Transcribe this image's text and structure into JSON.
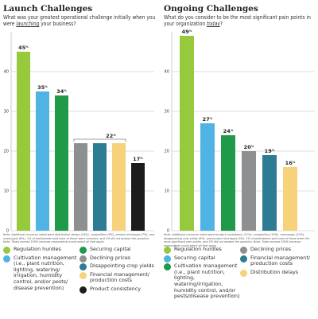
{
  "chart_data": [
    {
      "type": "bar",
      "title": "Launch Challenges",
      "question_html": "What was your greatest operational challenge initially when you were <em>launching</em> your business?",
      "ylim": [
        0,
        50
      ],
      "yticks": [
        0,
        10,
        20,
        30,
        40
      ],
      "grid": true,
      "categories": [
        "Regulation hurdles",
        "Cultivation management (i.e., plant nutrition, lighting, watering/ irrigation, humidity control, and/or pests/ disease prevention)",
        "Securing capital",
        "Declining prices",
        "Disappointing crop yields",
        "Financial management/ production costs",
        "Product consistency"
      ],
      "values": [
        45,
        35,
        34,
        22,
        22,
        22,
        17
      ],
      "value_labels": [
        "45%",
        "35%",
        "34%",
        "",
        "",
        "",
        "17%"
      ],
      "group_label": {
        "text": "22%",
        "from": 3,
        "to": 5,
        "value": 22
      },
      "colors": [
        "#97c93d",
        "#4fb3e4",
        "#1f9a48",
        "#8e8f91",
        "#2e7c94",
        "#f6d27a",
        "#1c1c1c"
      ],
      "note": "Note: Additional concerns noted were distribution delays (14%), competition (9%), product shortages (7%), and oversupply (6%). 1% of participants said none of these were concerns, and 1% did not answer the question. Note: Totals exceed 100% because respondents could select all that apply.",
      "legend_columns": [
        [
          0,
          1
        ],
        [
          2,
          3,
          4,
          5,
          6
        ]
      ]
    },
    {
      "type": "bar",
      "title": "Ongoing Challenges",
      "question_html": "What do you consider to be the most significant pain points in your organization <em>today</em>?",
      "ylim": [
        0,
        50
      ],
      "yticks": [
        0,
        10,
        20,
        30,
        40
      ],
      "grid": true,
      "categories": [
        "Regulation hurdles",
        "Securing capital",
        "Cultivation management (i.e., plant nutrition, lighting, watering/irrigation, humidity control, and/or pests/disease prevention)",
        "Declining prices",
        "Financial management/ production costs",
        "Distribution delays"
      ],
      "values": [
        49,
        27,
        24,
        20,
        19,
        16
      ],
      "value_labels": [
        "49%",
        "27%",
        "24%",
        "20%",
        "19%",
        "16%"
      ],
      "colors": [
        "#97c93d",
        "#4fb3e4",
        "#1f9a48",
        "#8e8f91",
        "#2e7c94",
        "#f6d27a"
      ],
      "note": "Note: Additional concerns noted were product consistency (11%), competition (10%), oversupply (10%), disappointing crop yields (9%), and product shortages (5%). 1% of participants said none of these were the most significant pain points, and 2% did not answer the question. Note: Totals exceed 100% because respondents could select all that apply.",
      "legend_columns": [
        [
          0,
          1,
          2
        ],
        [
          3,
          4,
          5
        ]
      ]
    }
  ]
}
